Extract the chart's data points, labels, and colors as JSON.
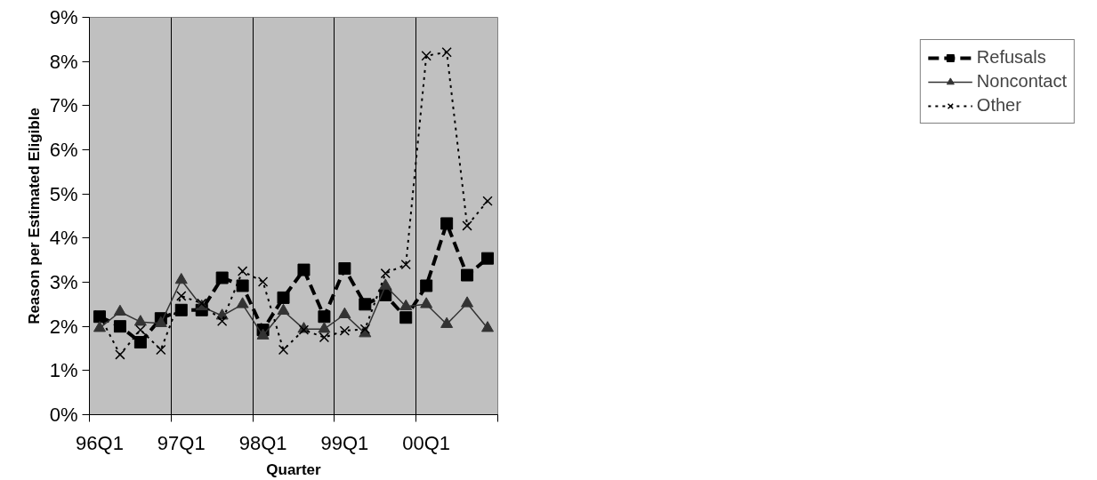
{
  "chart_data": {
    "type": "line",
    "xlabel": "Quarter",
    "ylabel": "Reason per Estimated Eligible",
    "categories": [
      "96Q1",
      null,
      null,
      null,
      "97Q1",
      null,
      null,
      null,
      "98Q1",
      null,
      null,
      null,
      "99Q1",
      null,
      null,
      null,
      "00Q1",
      null,
      null,
      null
    ],
    "ylim": [
      0,
      9
    ],
    "yticks": [
      {
        "value": 0,
        "label": "0%"
      },
      {
        "value": 1,
        "label": "1%"
      },
      {
        "value": 2,
        "label": "2%"
      },
      {
        "value": 3,
        "label": "3%"
      },
      {
        "value": 4,
        "label": "4%"
      },
      {
        "value": 5,
        "label": "5%"
      },
      {
        "value": 6,
        "label": "6%"
      },
      {
        "value": 7,
        "label": "7%"
      },
      {
        "value": 8,
        "label": "8%"
      },
      {
        "value": 9,
        "label": "9%"
      }
    ],
    "grid": "x",
    "legend": "right",
    "series": [
      {
        "name": "Refusals",
        "color": "#000000",
        "marker": "square",
        "line_style": "dashed",
        "values": [
          2.22,
          2.0,
          1.64,
          2.18,
          2.37,
          2.37,
          3.1,
          2.92,
          1.92,
          2.65,
          3.28,
          2.22,
          3.31,
          2.5,
          2.71,
          2.2,
          2.92,
          4.33,
          3.16,
          3.54
        ]
      },
      {
        "name": "Noncontact",
        "color": "#333333",
        "marker": "triangle",
        "line_style": "solid",
        "values": [
          1.96,
          2.33,
          2.1,
          2.07,
          3.05,
          2.45,
          2.24,
          2.5,
          1.79,
          2.35,
          1.94,
          1.94,
          2.27,
          1.84,
          2.92,
          2.45,
          2.5,
          2.05,
          2.52,
          1.96
        ]
      },
      {
        "name": "Other",
        "color": "#000000",
        "marker": "cross",
        "line_style": "dotted",
        "values": [
          2.25,
          1.36,
          1.92,
          1.47,
          2.69,
          2.52,
          2.12,
          3.25,
          3.01,
          1.47,
          1.92,
          1.75,
          1.9,
          1.94,
          3.2,
          3.4,
          8.13,
          8.21,
          4.28,
          4.84
        ]
      }
    ]
  }
}
